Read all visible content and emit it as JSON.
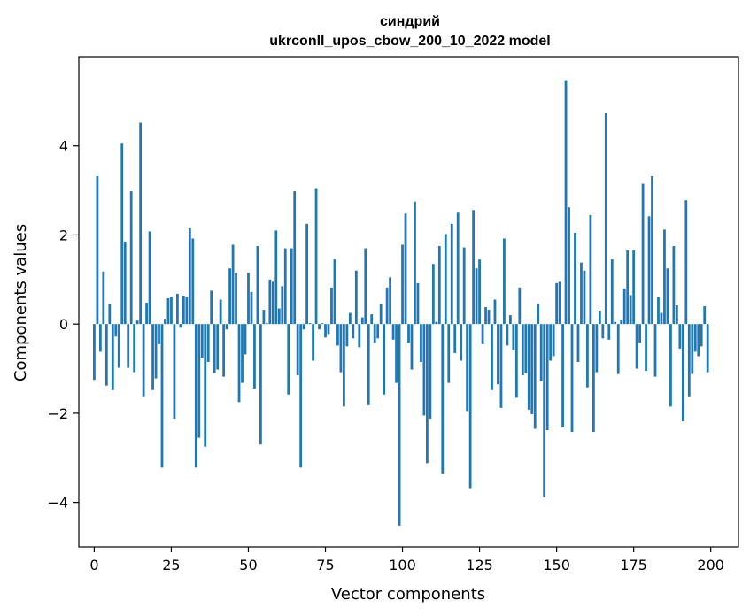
{
  "chart_data": {
    "type": "bar",
    "title": "синдрий",
    "subtitle": "ukrconll_upos_cbow_200_10_2022 model",
    "xlabel": "Vector components",
    "ylabel": "Components values",
    "xlim": [
      -5,
      209
    ],
    "ylim": [
      -5.0,
      6.0
    ],
    "xticks": [
      0,
      25,
      50,
      75,
      100,
      125,
      150,
      175,
      200
    ],
    "yticks": [
      -4,
      -2,
      0,
      2,
      4
    ],
    "grid": false,
    "bar_color": "#1f77b4",
    "x": [
      0,
      1,
      2,
      3,
      4,
      5,
      6,
      7,
      8,
      9,
      10,
      11,
      12,
      13,
      14,
      15,
      16,
      17,
      18,
      19,
      20,
      21,
      22,
      23,
      24,
      25,
      26,
      27,
      28,
      29,
      30,
      31,
      32,
      33,
      34,
      35,
      36,
      37,
      38,
      39,
      40,
      41,
      42,
      43,
      44,
      45,
      46,
      47,
      48,
      49,
      50,
      51,
      52,
      53,
      54,
      55,
      56,
      57,
      58,
      59,
      60,
      61,
      62,
      63,
      64,
      65,
      66,
      67,
      68,
      69,
      70,
      71,
      72,
      73,
      74,
      75,
      76,
      77,
      78,
      79,
      80,
      81,
      82,
      83,
      84,
      85,
      86,
      87,
      88,
      89,
      90,
      91,
      92,
      93,
      94,
      95,
      96,
      97,
      98,
      99,
      100,
      101,
      102,
      103,
      104,
      105,
      106,
      107,
      108,
      109,
      110,
      111,
      112,
      113,
      114,
      115,
      116,
      117,
      118,
      119,
      120,
      121,
      122,
      123,
      124,
      125,
      126,
      127,
      128,
      129,
      130,
      131,
      132,
      133,
      134,
      135,
      136,
      137,
      138,
      139,
      140,
      141,
      142,
      143,
      144,
      145,
      146,
      147,
      148,
      149,
      150,
      151,
      152,
      153,
      154,
      155,
      156,
      157,
      158,
      159,
      160,
      161,
      162,
      163,
      164,
      165,
      166,
      167,
      168,
      169,
      170,
      171,
      172,
      173,
      174,
      175,
      176,
      177,
      178,
      179,
      180,
      181,
      182,
      183,
      184,
      185,
      186,
      187,
      188,
      189,
      190,
      191,
      192,
      193,
      194,
      195,
      196,
      197,
      198,
      199
    ],
    "values": [
      -1.25,
      3.32,
      -0.62,
      1.18,
      -1.38,
      0.45,
      -1.48,
      -0.28,
      -0.98,
      4.05,
      1.85,
      -0.98,
      2.98,
      -1.08,
      0.08,
      4.52,
      -1.62,
      0.48,
      2.08,
      -1.48,
      -1.22,
      -0.45,
      -3.22,
      0.12,
      0.58,
      0.6,
      -2.12,
      0.68,
      -0.08,
      0.62,
      0.6,
      2.15,
      1.92,
      -3.22,
      -2.55,
      -0.75,
      -2.75,
      -0.85,
      0.75,
      -1.1,
      -1.02,
      0.55,
      -1.18,
      -0.12,
      1.25,
      1.78,
      1.15,
      -1.75,
      -1.32,
      -0.68,
      1.15,
      0.72,
      -1.45,
      1.75,
      -2.7,
      0.32,
      0.02,
      1.0,
      0.95,
      2.1,
      0.35,
      0.85,
      1.7,
      -1.58,
      1.7,
      2.98,
      -1.15,
      -3.22,
      -0.12,
      2.25,
      0.02,
      -0.82,
      3.05,
      -0.12,
      0.02,
      -0.3,
      -0.22,
      0.82,
      1.45,
      -0.48,
      -1.08,
      -1.85,
      -0.5,
      0.25,
      -0.32,
      1.2,
      -0.52,
      0.15,
      1.7,
      -1.82,
      0.22,
      -0.42,
      -0.32,
      0.45,
      -1.58,
      0.82,
      1.05,
      -0.35,
      -1.32,
      -4.52,
      1.78,
      2.48,
      -0.42,
      -1.02,
      2.75,
      0.92,
      -0.85,
      -2.05,
      -3.12,
      -2.12,
      1.35,
      0.05,
      1.75,
      -3.35,
      2.02,
      -1.32,
      2.25,
      -0.65,
      2.5,
      -0.82,
      1.72,
      -1.95,
      -3.68,
      2.56,
      1.25,
      1.45,
      -0.45,
      0.38,
      0.32,
      -1.48,
      0.55,
      -1.35,
      -1.88,
      1.92,
      -0.48,
      0.2,
      -0.58,
      -1.65,
      0.82,
      -1.15,
      -1.1,
      -1.92,
      -2.02,
      -2.35,
      0.45,
      -1.28,
      -3.88,
      -2.38,
      -0.82,
      -0.72,
      0.92,
      0.95,
      -2.32,
      5.47,
      2.62,
      -2.42,
      2.05,
      -0.85,
      1.38,
      1.2,
      -1.42,
      2.45,
      -2.42,
      -1.08,
      0.3,
      -0.32,
      4.73,
      -0.35,
      1.45,
      0.05,
      -1.12,
      0.1,
      0.8,
      1.65,
      0.65,
      1.65,
      -1.0,
      -0.42,
      3.15,
      -1.05,
      2.42,
      3.32,
      -1.18,
      0.6,
      0.25,
      2.12,
      1.25,
      -1.85,
      1.75,
      0.42,
      -0.55,
      -2.18,
      2.78,
      -1.62,
      -1.12,
      -0.62,
      -0.72,
      -0.5,
      0.4,
      -1.08
    ]
  }
}
